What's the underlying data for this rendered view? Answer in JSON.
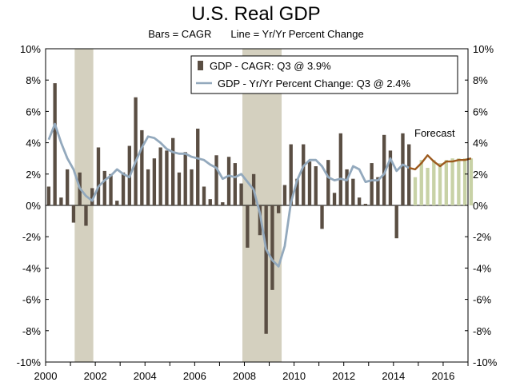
{
  "chart_data": {
    "type": "bar",
    "title": "U.S. Real GDP",
    "subtitle_left": "Bars = CAGR",
    "subtitle_right": "Line = Yr/Yr Percent Change",
    "ylim": [
      -10,
      10
    ],
    "y_ticks": [
      "10%",
      "8%",
      "6%",
      "4%",
      "2%",
      "0%",
      "-2%",
      "-4%",
      "-6%",
      "-8%",
      "-10%"
    ],
    "x_tick_labels": [
      "2000",
      "2002",
      "2004",
      "2006",
      "2008",
      "2010",
      "2012",
      "2014",
      "2016"
    ],
    "x_range_years": [
      2000,
      2017
    ],
    "legend": [
      {
        "label": "GDP - CAGR: Q3 @ 3.9%",
        "kind": "bar"
      },
      {
        "label": "GDP - Yr/Yr Percent Change: Q3 @ 2.4%",
        "kind": "line"
      }
    ],
    "annotation": "Forecast",
    "recession_shading": [
      [
        2001.17,
        2001.92
      ],
      [
        2007.92,
        2009.5
      ]
    ],
    "colors": {
      "bar_actual": "#5a4e43",
      "bar_forecast": "#c8d2a6",
      "line_actual": "#93a9bd",
      "line_forecast": "#9c5a1e",
      "recession": "#d4d0bf"
    },
    "series": [
      {
        "name": "GDP - CAGR",
        "type": "bar",
        "start": "2000Q1",
        "values": [
          1.2,
          7.8,
          0.5,
          2.3,
          -1.1,
          2.1,
          -1.3,
          1.1,
          3.7,
          2.2,
          2.0,
          0.3,
          2.1,
          3.8,
          6.9,
          4.8,
          2.3,
          3.0,
          3.7,
          3.5,
          4.3,
          2.1,
          3.4,
          2.3,
          4.9,
          1.2,
          0.4,
          3.2,
          0.2,
          3.1,
          2.7,
          1.4,
          -2.7,
          2.0,
          -1.9,
          -8.2,
          -5.4,
          -0.5,
          1.3,
          3.9,
          1.7,
          3.9,
          2.8,
          2.5,
          -1.5,
          2.9,
          0.8,
          4.6,
          2.3,
          1.7,
          0.5,
          0.1,
          2.7,
          1.8,
          4.5,
          3.5,
          -2.1,
          4.6,
          3.9
        ]
      },
      {
        "name": "GDP - CAGR Forecast",
        "type": "bar",
        "start": "2014Q4",
        "values": [
          1.8,
          2.9,
          2.4,
          2.9,
          2.7,
          2.9,
          3.0,
          3.0,
          3.0,
          3.0
        ]
      },
      {
        "name": "GDP - Yr/Yr Percent Change",
        "type": "line",
        "start": "2000Q1",
        "values": [
          4.2,
          5.2,
          4.0,
          3.0,
          2.3,
          1.1,
          0.6,
          0.3,
          1.2,
          1.6,
          1.9,
          2.3,
          2.0,
          1.8,
          2.8,
          3.7,
          4.4,
          4.3,
          4.0,
          3.6,
          3.4,
          3.3,
          3.3,
          3.1,
          3.0,
          2.9,
          2.6,
          2.4,
          1.7,
          1.9,
          1.8,
          2.0,
          1.5,
          1.0,
          -0.5,
          -2.8,
          -3.5,
          -3.9,
          -2.6,
          0.2,
          1.6,
          2.5,
          2.9,
          2.9,
          2.5,
          1.8,
          1.6,
          1.7,
          1.6,
          2.5,
          2.3,
          1.5,
          1.6,
          1.6,
          2.0,
          3.0,
          2.2,
          2.6,
          2.4
        ]
      },
      {
        "name": "GDP - Yr/Yr Forecast",
        "type": "line",
        "start": "2014Q3",
        "values": [
          2.4,
          2.3,
          2.7,
          3.2,
          2.8,
          2.5,
          2.8,
          2.8,
          2.9,
          2.9,
          3.0
        ]
      }
    ]
  }
}
